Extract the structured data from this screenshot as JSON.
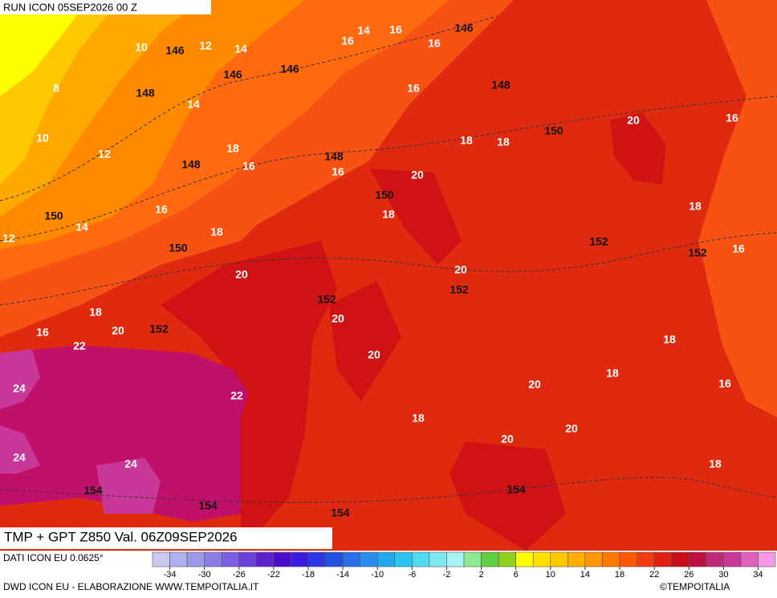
{
  "header": {
    "run": "RUN ICON 05SEP2026 00 Z"
  },
  "map": {
    "temperature_labels": [
      "10",
      "12",
      "14",
      "14",
      "16",
      "16",
      "16",
      "8",
      "14",
      "16",
      "10",
      "12",
      "18",
      "16",
      "16",
      "20",
      "18",
      "18",
      "20",
      "16",
      "18",
      "16",
      "14",
      "12",
      "18",
      "20",
      "18",
      "16",
      "20",
      "18",
      "20",
      "16",
      "20",
      "22",
      "20",
      "18",
      "18",
      "24",
      "22",
      "20",
      "16",
      "18",
      "20",
      "20",
      "24",
      "24",
      "18"
    ],
    "geopotential_labels": [
      "146",
      "146",
      "146",
      "146",
      "148",
      "148",
      "150",
      "148",
      "148",
      "150",
      "150",
      "150",
      "152",
      "152",
      "152",
      "152",
      "152",
      "154",
      "154",
      "154",
      "154"
    ]
  },
  "footer": {
    "title": "TMP + GPT Z850 Val. 06Z09SEP2026",
    "data_source": "DATI ICON EU 0.0625°",
    "credit": "DWD ICON EU - ELABORAZIONE WWW.TEMPOITALIA.IT",
    "copyright": "©TEMPOITALIA"
  },
  "colorbar": {
    "ticks": [
      -34,
      -30,
      -26,
      -22,
      -18,
      -14,
      -10,
      -6,
      -2,
      2,
      6,
      10,
      14,
      18,
      22,
      26,
      30,
      34
    ],
    "colors": [
      "#c8c8f0",
      "#b0b0ec",
      "#9a9ae8",
      "#8c7ce6",
      "#7c5ee0",
      "#6c40da",
      "#5c22cc",
      "#4c0ccc",
      "#3c1ae0",
      "#2c36e6",
      "#2450e0",
      "#2c6ee8",
      "#2a8cee",
      "#22a8ee",
      "#2cc4ee",
      "#50dcee",
      "#7ceaf0",
      "#a8f4f4",
      "#90e890",
      "#60d040",
      "#90d020",
      "#ffff00",
      "#ffe000",
      "#ffc800",
      "#ffb000",
      "#ff9800",
      "#ff7800",
      "#ff5800",
      "#f03c10",
      "#e02010",
      "#c80c18",
      "#c01040",
      "#c02878",
      "#c83898",
      "#e060c0",
      "#f898e8"
    ]
  }
}
